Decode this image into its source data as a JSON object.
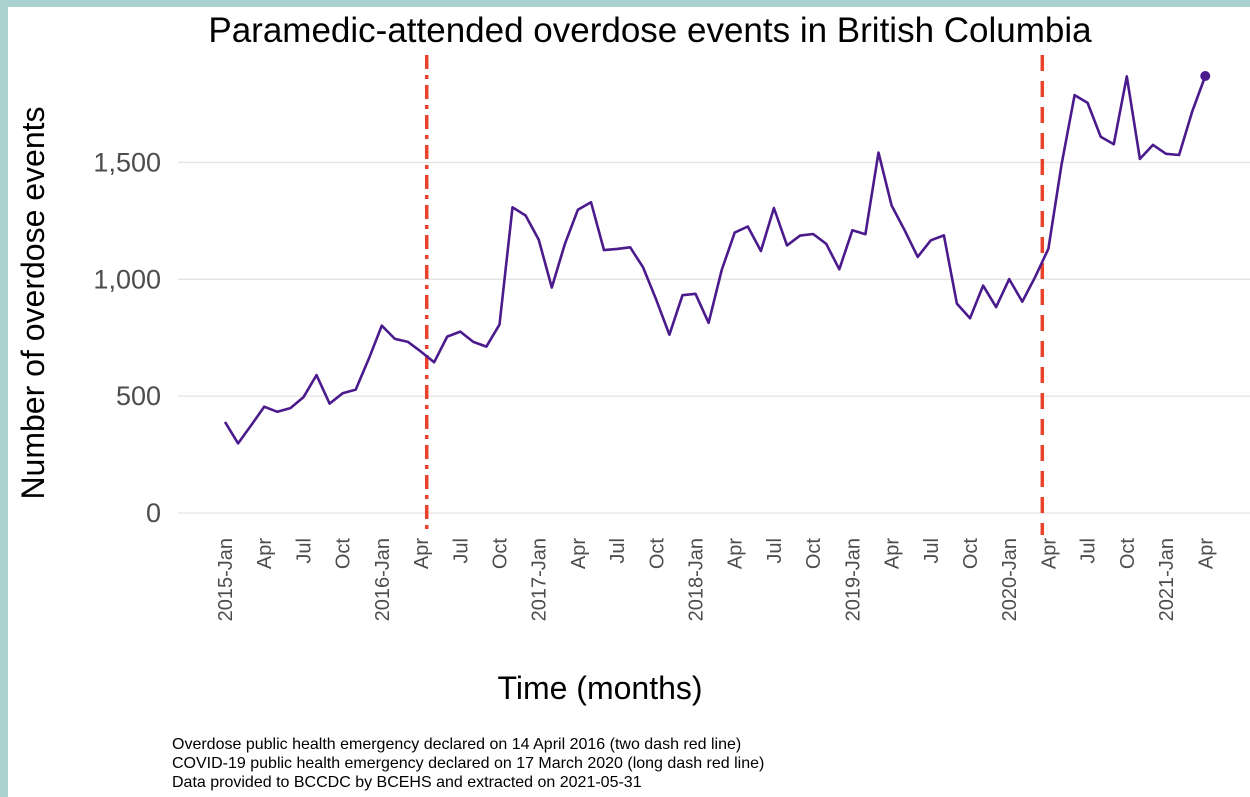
{
  "chart_data": {
    "type": "line",
    "title": "Paramedic-attended overdose events in British Columbia",
    "xlabel": "Time (months)",
    "ylabel": "Number of overdose events",
    "ylim": [
      0,
      1950
    ],
    "grid": true,
    "legend": "none",
    "y_ticks": [
      "0",
      "500",
      "1,000",
      "1,500"
    ],
    "y_tick_values": [
      0,
      500,
      1000,
      1500
    ],
    "x_ticks": [
      "2015-Jan",
      "Apr",
      "Jul",
      "Oct",
      "2016-Jan",
      "Apr",
      "Jul",
      "Oct",
      "2017-Jan",
      "Apr",
      "Jul",
      "Oct",
      "2018-Jan",
      "Apr",
      "Jul",
      "Oct",
      "2019-Jan",
      "Apr",
      "Jul",
      "Oct",
      "2020-Jan",
      "Apr",
      "Jul",
      "Oct",
      "2021-Jan",
      "Apr"
    ],
    "x_tick_months": [
      0,
      3,
      6,
      9,
      12,
      15,
      18,
      21,
      24,
      27,
      30,
      33,
      36,
      39,
      42,
      45,
      48,
      51,
      54,
      57,
      60,
      63,
      66,
      69,
      72,
      75
    ],
    "series": [
      {
        "color": "#4b1a8c",
        "x": [
          "2015-01",
          "2015-02",
          "2015-03",
          "2015-04",
          "2015-05",
          "2015-06",
          "2015-07",
          "2015-08",
          "2015-09",
          "2015-10",
          "2015-11",
          "2015-12",
          "2016-01",
          "2016-02",
          "2016-03",
          "2016-04",
          "2016-05",
          "2016-06",
          "2016-07",
          "2016-08",
          "2016-09",
          "2016-10",
          "2016-11",
          "2016-12",
          "2017-01",
          "2017-02",
          "2017-03",
          "2017-04",
          "2017-05",
          "2017-06",
          "2017-07",
          "2017-08",
          "2017-09",
          "2017-10",
          "2017-11",
          "2017-12",
          "2018-01",
          "2018-02",
          "2018-03",
          "2018-04",
          "2018-05",
          "2018-06",
          "2018-07",
          "2018-08",
          "2018-09",
          "2018-10",
          "2018-11",
          "2018-12",
          "2019-01",
          "2019-02",
          "2019-03",
          "2019-04",
          "2019-05",
          "2019-06",
          "2019-07",
          "2019-08",
          "2019-09",
          "2019-10",
          "2019-11",
          "2019-12",
          "2020-01",
          "2020-02",
          "2020-03",
          "2020-04",
          "2020-05",
          "2020-06",
          "2020-07",
          "2020-08",
          "2020-09",
          "2020-10",
          "2020-11",
          "2020-12",
          "2021-01",
          "2021-02",
          "2021-03",
          "2021-04"
        ],
        "values": [
          390,
          298,
          375,
          455,
          433,
          449,
          495,
          590,
          468,
          512,
          528,
          660,
          802,
          745,
          732,
          690,
          645,
          755,
          776,
          732,
          712,
          806,
          1308,
          1273,
          1170,
          965,
          1150,
          1298,
          1330,
          1125,
          1130,
          1137,
          1050,
          912,
          763,
          932,
          938,
          814,
          1040,
          1200,
          1226,
          1121,
          1305,
          1145,
          1187,
          1194,
          1152,
          1043,
          1210,
          1193,
          1542,
          1316,
          1210,
          1096,
          1167,
          1188,
          896,
          833,
          973,
          881,
          1001,
          904,
          1011,
          1131,
          1490,
          1788,
          1755,
          1610,
          1578,
          1868,
          1515,
          1575,
          1537,
          1532,
          1718,
          1870
        ]
      }
    ],
    "annotations": [
      {
        "x": "2016-04-14",
        "style": "two-dash",
        "color": "#e8412c"
      },
      {
        "x": "2020-03-17",
        "style": "long-dash",
        "color": "#e8412c"
      }
    ]
  },
  "caption": [
    "Overdose public health emergency declared on 14 April 2016 (two dash red line)",
    "COVID-19 public health emergency declared on 17 March 2020 (long dash red line)",
    "Data provided to BCCDC by BCEHS and extracted on 2021-05-31"
  ]
}
